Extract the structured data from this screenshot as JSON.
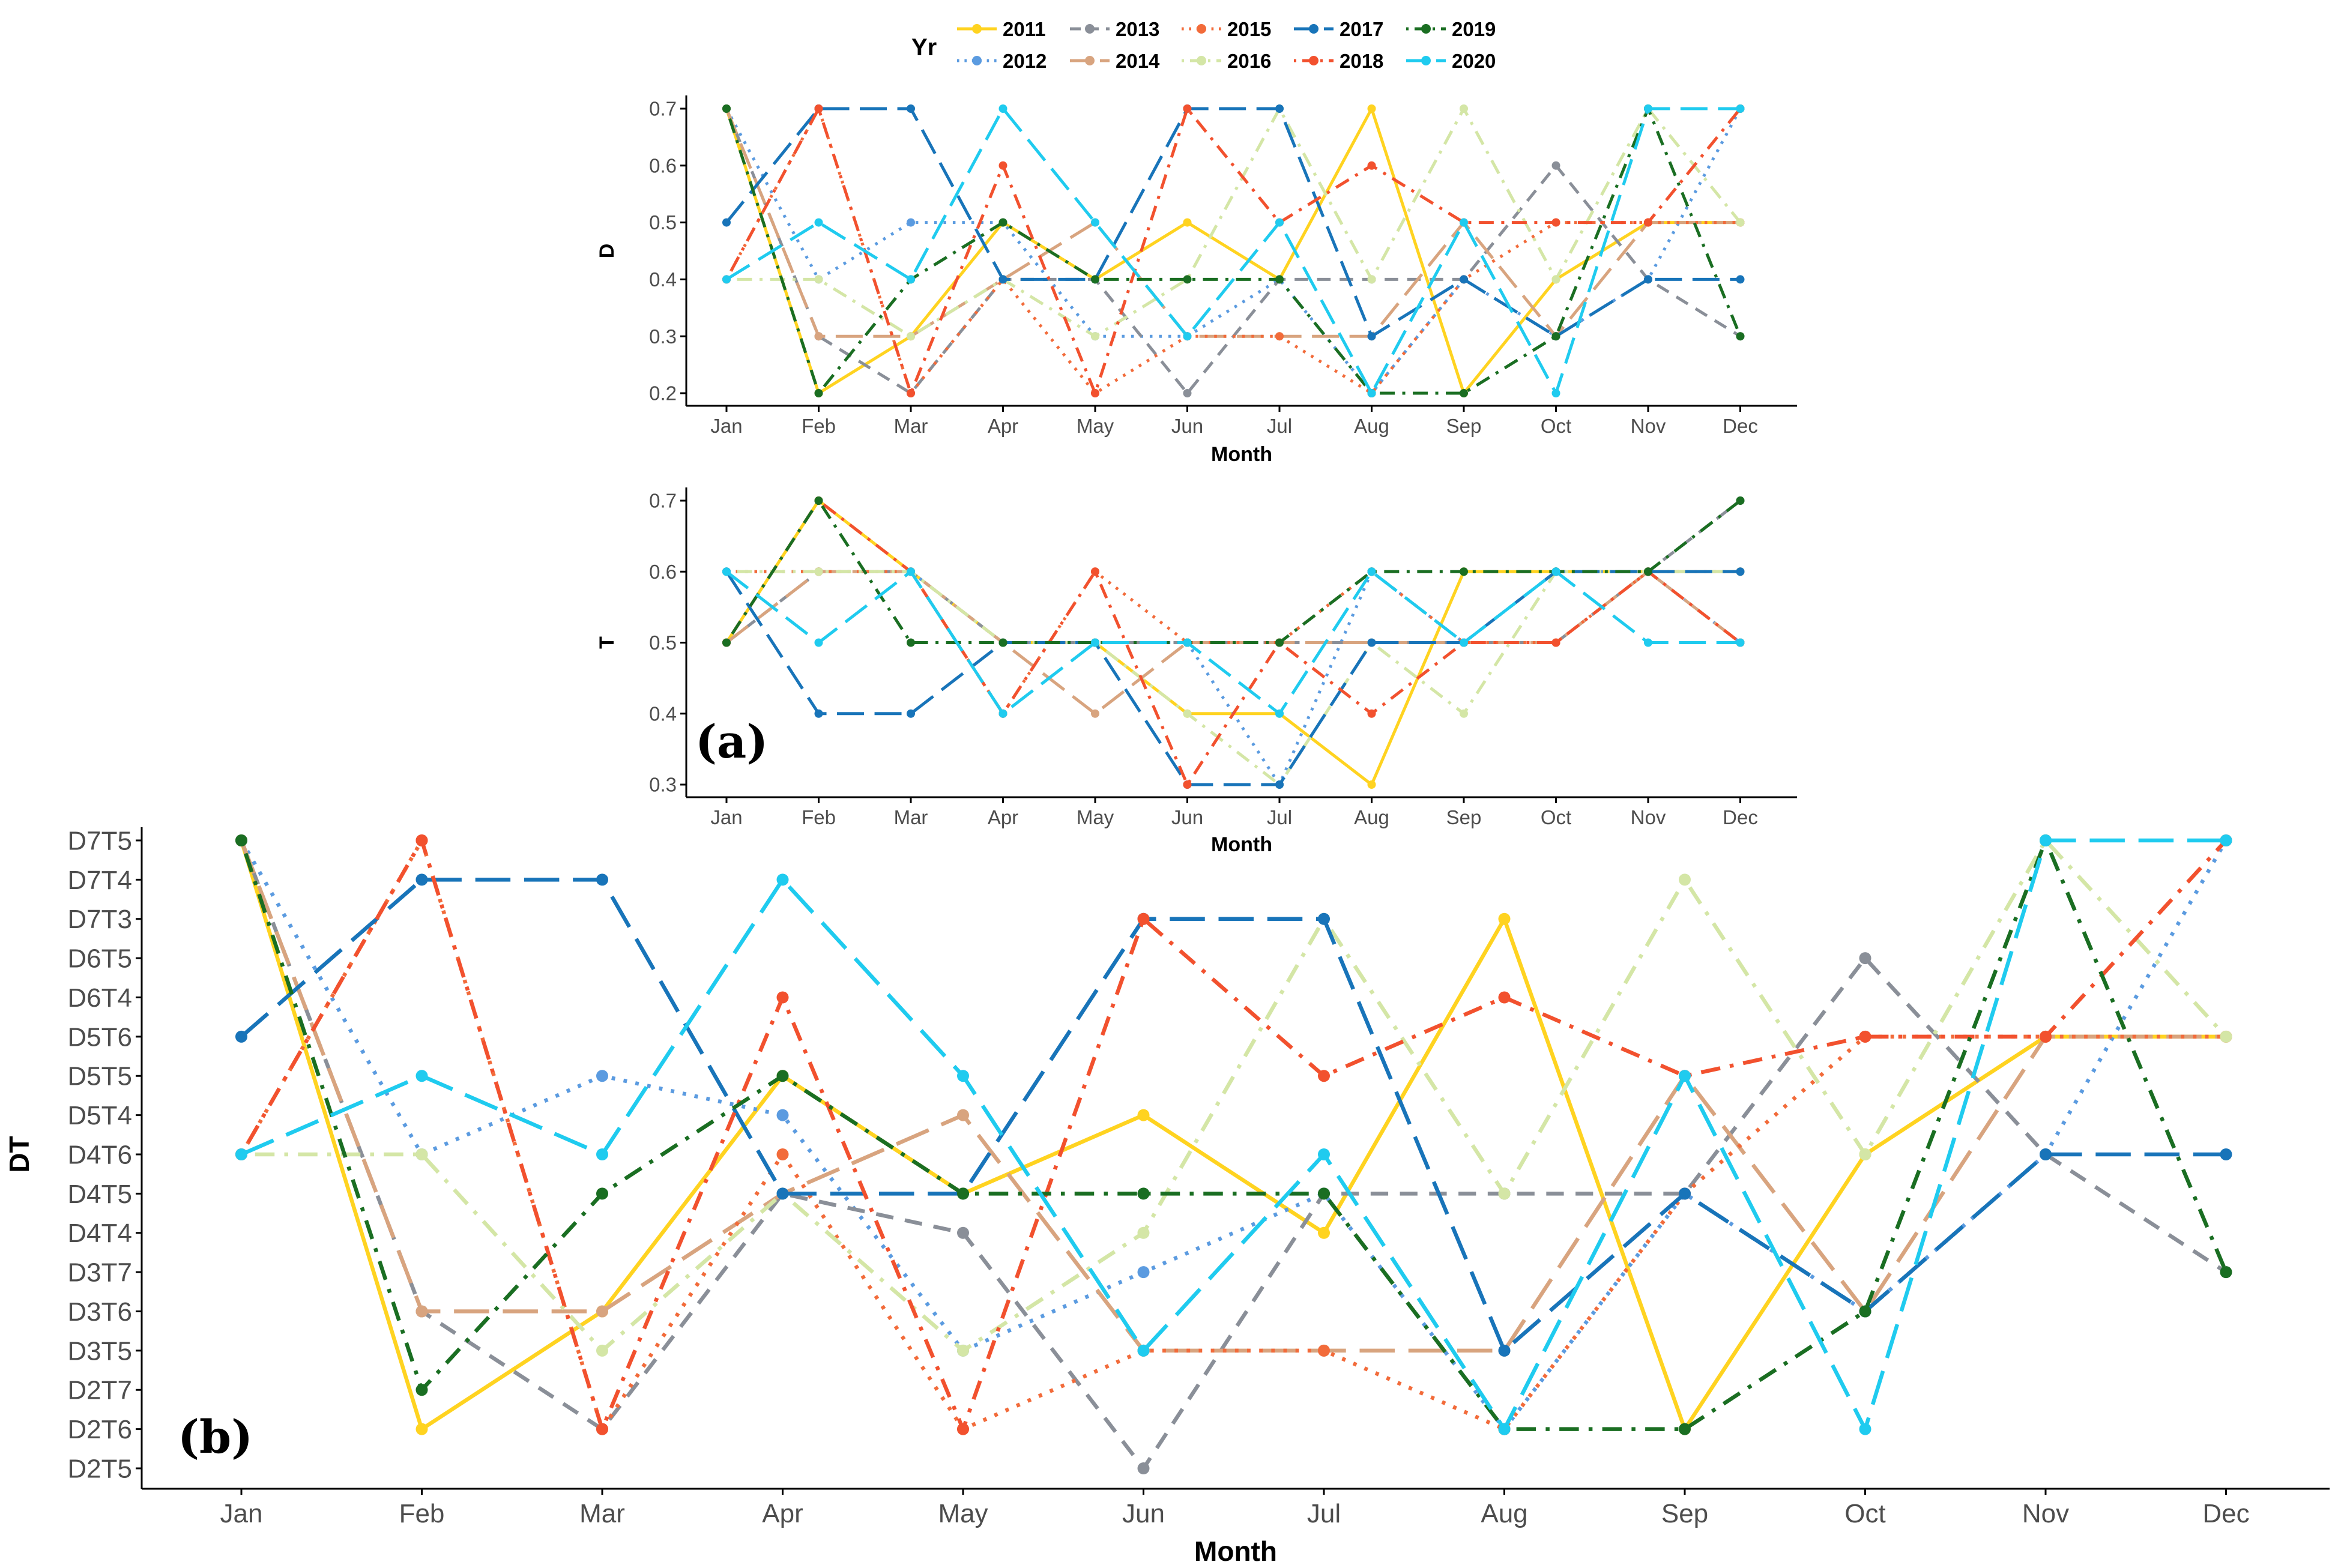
{
  "legend": {
    "title": "Yr",
    "years": [
      "2011",
      "2012",
      "2013",
      "2014",
      "2015",
      "2016",
      "2017",
      "2018",
      "2019",
      "2020"
    ]
  },
  "series_styles": [
    {
      "name": "2011",
      "color": "#FFD320",
      "dash": "solid"
    },
    {
      "name": "2012",
      "color": "#5B9BE0",
      "dash": "dotted"
    },
    {
      "name": "2013",
      "color": "#8A8F98",
      "dash": "dashed"
    },
    {
      "name": "2014",
      "color": "#D8A47F",
      "dash": "longdash"
    },
    {
      "name": "2015",
      "color": "#F26B3A",
      "dash": "dotted"
    },
    {
      "name": "2016",
      "color": "#D4E6A6",
      "dash": "dotdash"
    },
    {
      "name": "2017",
      "color": "#1874B9",
      "dash": "longdash"
    },
    {
      "name": "2018",
      "color": "#F2512E",
      "dash": "dotdash"
    },
    {
      "name": "2019",
      "color": "#1A6E22",
      "dash": "dotdash"
    },
    {
      "name": "2020",
      "color": "#1FCBEF",
      "dash": "longdash"
    }
  ],
  "panel_labels": {
    "a": "(a)",
    "b": "(b)"
  },
  "chart_data": [
    {
      "id": "D",
      "type": "line",
      "xlabel": "Month",
      "ylabel": "D",
      "categories": [
        "Jan",
        "Feb",
        "Mar",
        "Apr",
        "May",
        "Jun",
        "Jul",
        "Aug",
        "Sep",
        "Oct",
        "Nov",
        "Dec"
      ],
      "ylim": [
        0.2,
        0.7
      ],
      "yticks": [
        "0.2",
        "0.3",
        "0.4",
        "0.5",
        "0.6",
        "0.7"
      ],
      "series": [
        {
          "name": "2011",
          "values": [
            0.7,
            0.2,
            0.3,
            0.5,
            0.4,
            0.5,
            0.4,
            0.7,
            0.2,
            0.4,
            0.5,
            0.5
          ]
        },
        {
          "name": "2012",
          "values": [
            0.7,
            0.4,
            0.5,
            0.5,
            0.3,
            0.3,
            0.4,
            0.2,
            0.4,
            0.3,
            0.4,
            0.7
          ]
        },
        {
          "name": "2013",
          "values": [
            0.7,
            0.3,
            0.2,
            0.4,
            0.4,
            0.2,
            0.4,
            0.4,
            0.4,
            0.6,
            0.4,
            0.3
          ]
        },
        {
          "name": "2014",
          "values": [
            0.7,
            0.3,
            0.3,
            0.4,
            0.5,
            0.3,
            0.3,
            0.3,
            0.5,
            0.3,
            0.5,
            0.5
          ]
        },
        {
          "name": "2015",
          "values": [
            0.4,
            0.7,
            0.2,
            0.4,
            0.2,
            0.3,
            0.3,
            0.2,
            0.4,
            0.5,
            0.5,
            0.5
          ]
        },
        {
          "name": "2016",
          "values": [
            0.4,
            0.4,
            0.3,
            0.4,
            0.3,
            0.4,
            0.7,
            0.4,
            0.7,
            0.4,
            0.7,
            0.5
          ]
        },
        {
          "name": "2017",
          "values": [
            0.5,
            0.7,
            0.7,
            0.4,
            0.4,
            0.7,
            0.7,
            0.3,
            0.4,
            0.3,
            0.4,
            0.4
          ]
        },
        {
          "name": "2018",
          "values": [
            0.4,
            0.7,
            0.2,
            0.6,
            0.2,
            0.7,
            0.5,
            0.6,
            0.5,
            0.5,
            0.5,
            0.7
          ]
        },
        {
          "name": "2019",
          "values": [
            0.7,
            0.2,
            0.4,
            0.5,
            0.4,
            0.4,
            0.4,
            0.2,
            0.2,
            0.3,
            0.7,
            0.3
          ]
        },
        {
          "name": "2020",
          "values": [
            0.4,
            0.5,
            0.4,
            0.7,
            0.5,
            0.3,
            0.5,
            0.2,
            0.5,
            0.2,
            0.7,
            0.7
          ]
        }
      ]
    },
    {
      "id": "T",
      "type": "line",
      "xlabel": "Month",
      "ylabel": "T",
      "categories": [
        "Jan",
        "Feb",
        "Mar",
        "Apr",
        "May",
        "Jun",
        "Jul",
        "Aug",
        "Sep",
        "Oct",
        "Nov",
        "Dec"
      ],
      "ylim": [
        0.3,
        0.7
      ],
      "yticks": [
        "0.3",
        "0.4",
        "0.5",
        "0.6",
        "0.7"
      ],
      "series": [
        {
          "name": "2011",
          "values": [
            0.5,
            0.7,
            0.6,
            0.5,
            0.5,
            0.4,
            0.4,
            0.3,
            0.6,
            0.6,
            0.6,
            0.6
          ]
        },
        {
          "name": "2012",
          "values": [
            0.6,
            0.6,
            0.6,
            0.5,
            0.5,
            0.5,
            0.3,
            0.6,
            0.5,
            0.6,
            0.6,
            0.5
          ]
        },
        {
          "name": "2013",
          "values": [
            0.5,
            0.6,
            0.6,
            0.5,
            0.5,
            0.5,
            0.5,
            0.5,
            0.5,
            0.5,
            0.6,
            0.7
          ]
        },
        {
          "name": "2014",
          "values": [
            0.5,
            0.6,
            0.6,
            0.5,
            0.4,
            0.5,
            0.5,
            0.5,
            0.5,
            0.5,
            0.6,
            0.5
          ]
        },
        {
          "name": "2015",
          "values": [
            0.6,
            0.6,
            0.6,
            0.4,
            0.6,
            0.5,
            0.5,
            0.6,
            0.5,
            0.5,
            0.6,
            0.6
          ]
        },
        {
          "name": "2016",
          "values": [
            0.6,
            0.6,
            0.6,
            0.5,
            0.5,
            0.4,
            0.3,
            0.5,
            0.4,
            0.6,
            0.6,
            0.6
          ]
        },
        {
          "name": "2017",
          "values": [
            0.6,
            0.4,
            0.4,
            0.5,
            0.5,
            0.3,
            0.3,
            0.5,
            0.5,
            0.6,
            0.6,
            0.6
          ]
        },
        {
          "name": "2018",
          "values": [
            0.5,
            0.7,
            0.6,
            0.4,
            0.6,
            0.3,
            0.5,
            0.4,
            0.5,
            0.5,
            0.6,
            0.5
          ]
        },
        {
          "name": "2019",
          "values": [
            0.5,
            0.7,
            0.5,
            0.5,
            0.5,
            0.5,
            0.5,
            0.6,
            0.6,
            0.6,
            0.6,
            0.7
          ]
        },
        {
          "name": "2020",
          "values": [
            0.6,
            0.5,
            0.6,
            0.4,
            0.5,
            0.5,
            0.4,
            0.6,
            0.5,
            0.6,
            0.5,
            0.5
          ]
        }
      ]
    },
    {
      "id": "DT",
      "type": "line",
      "xlabel": "Month",
      "ylabel": "DT",
      "categories": [
        "Jan",
        "Feb",
        "Mar",
        "Apr",
        "May",
        "Jun",
        "Jul",
        "Aug",
        "Sep",
        "Oct",
        "Nov",
        "Dec"
      ],
      "ylevels": [
        "D2T5",
        "D2T6",
        "D2T7",
        "D3T5",
        "D3T6",
        "D3T7",
        "D4T4",
        "D4T5",
        "D4T6",
        "D5T4",
        "D5T5",
        "D5T6",
        "D6T4",
        "D6T5",
        "D7T3",
        "D7T4",
        "D7T5"
      ],
      "series": [
        {
          "name": "2011",
          "values": [
            "D7T5",
            "D2T6",
            "D3T6",
            "D5T5",
            "D4T5",
            "D5T4",
            "D4T4",
            "D7T3",
            "D2T6",
            "D4T6",
            "D5T6",
            "D5T6"
          ]
        },
        {
          "name": "2012",
          "values": [
            "D7T5",
            "D4T6",
            "D5T5",
            "D5T4",
            "D3T5",
            "D3T7",
            "D4T5",
            "D2T6",
            "D4T5",
            "D3T6",
            "D4T6",
            "D7T5"
          ]
        },
        {
          "name": "2013",
          "values": [
            "D7T5",
            "D3T6",
            "D2T6",
            "D4T5",
            "D4T4",
            "D2T5",
            "D4T5",
            "D4T5",
            "D4T5",
            "D6T5",
            "D4T6",
            "D3T7"
          ]
        },
        {
          "name": "2014",
          "values": [
            "D7T5",
            "D3T6",
            "D3T6",
            "D4T5",
            "D5T4",
            "D3T5",
            "D3T5",
            "D3T5",
            "D5T5",
            "D3T6",
            "D5T6",
            "D5T6"
          ]
        },
        {
          "name": "2015",
          "values": [
            "D4T6",
            "D7T5",
            "D2T6",
            "D4T6",
            "D2T6",
            "D3T5",
            "D3T5",
            "D2T6",
            "D4T5",
            "D5T6",
            "D5T6",
            "D5T6"
          ]
        },
        {
          "name": "2016",
          "values": [
            "D4T6",
            "D4T6",
            "D3T5",
            "D4T5",
            "D3T5",
            "D4T4",
            "D7T3",
            "D4T5",
            "D7T4",
            "D4T6",
            "D7T5",
            "D5T6"
          ]
        },
        {
          "name": "2017",
          "values": [
            "D5T6",
            "D7T4",
            "D7T4",
            "D4T5",
            "D4T5",
            "D7T3",
            "D7T3",
            "D3T5",
            "D4T5",
            "D3T6",
            "D4T6",
            "D4T6"
          ]
        },
        {
          "name": "2018",
          "values": [
            "D4T6",
            "D7T5",
            "D2T6",
            "D6T4",
            "D2T6",
            "D7T3",
            "D5T5",
            "D6T4",
            "D5T5",
            "D5T6",
            "D5T6",
            "D7T5"
          ]
        },
        {
          "name": "2019",
          "values": [
            "D7T5",
            "D2T7",
            "D4T5",
            "D5T5",
            "D4T5",
            "D4T5",
            "D4T5",
            "D2T6",
            "D2T6",
            "D3T6",
            "D7T5",
            "D3T7"
          ]
        },
        {
          "name": "2020",
          "values": [
            "D4T6",
            "D5T5",
            "D4T6",
            "D7T4",
            "D5T5",
            "D3T5",
            "D4T6",
            "D2T6",
            "D5T5",
            "D2T6",
            "D7T5",
            "D7T5"
          ]
        }
      ]
    }
  ]
}
